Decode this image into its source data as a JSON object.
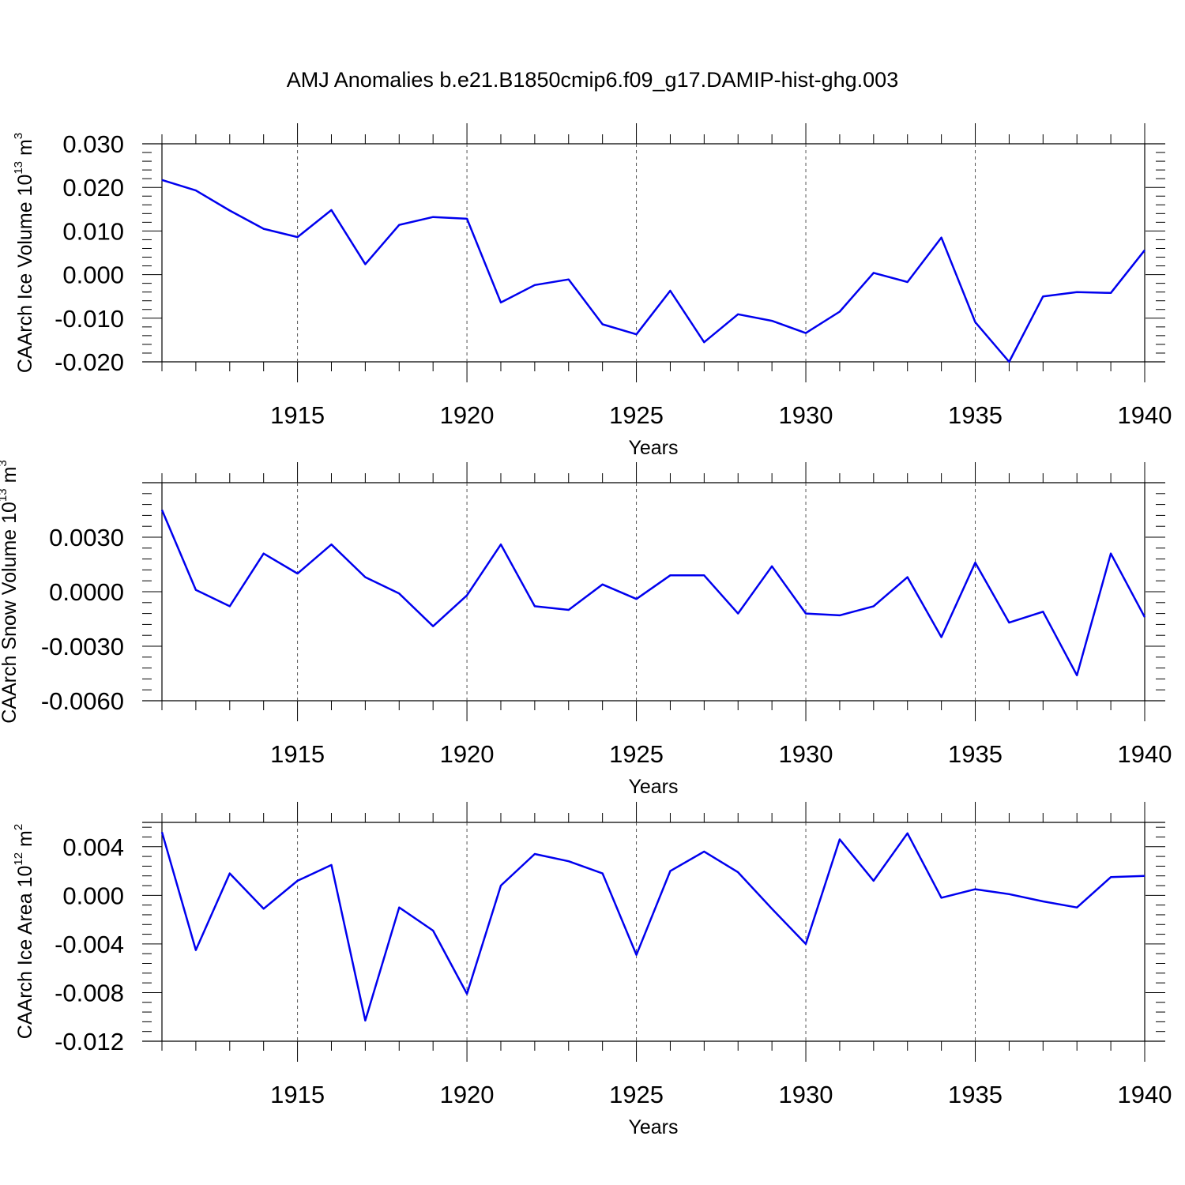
{
  "title": "AMJ Anomalies b.e21.B1850cmip6.f09_g17.DAMIP-hist-ghg.003",
  "chart_data": [
    {
      "type": "line",
      "title": "",
      "xlabel": "Years",
      "ylabel": "CAArch Ice Volume",
      "ylabel_unit_base": "10",
      "ylabel_unit_exp": "13",
      "ylabel_unit_symbol": "m",
      "ylabel_unit_symbol_exp": "3",
      "xlim": [
        1911,
        1940
      ],
      "ylim": [
        -0.02,
        0.03
      ],
      "yticks": [
        -0.02,
        -0.01,
        0.0,
        0.01,
        0.02,
        0.03
      ],
      "ytick_labels": [
        "-0.020",
        "-0.010",
        "0.000",
        "0.010",
        "0.020",
        "0.030"
      ],
      "xticks": [
        1915,
        1920,
        1925,
        1930,
        1935,
        1940
      ],
      "xtick_labels": [
        "1915",
        "1920",
        "1925",
        "1930",
        "1935",
        "1940"
      ],
      "grid": "vertical dashed at major x ticks",
      "line_color": "#0000ee",
      "x": [
        1911,
        1912,
        1913,
        1914,
        1915,
        1916,
        1917,
        1918,
        1919,
        1920,
        1921,
        1922,
        1923,
        1924,
        1925,
        1926,
        1927,
        1928,
        1929,
        1930,
        1931,
        1932,
        1933,
        1934,
        1935,
        1936,
        1937,
        1938,
        1939,
        1940
      ],
      "values": [
        0.0217,
        0.0193,
        0.0147,
        0.0105,
        0.0086,
        0.0148,
        0.0024,
        0.0114,
        0.0132,
        0.0128,
        -0.0064,
        -0.0024,
        -0.0011,
        -0.0114,
        -0.0137,
        -0.0037,
        -0.0155,
        -0.0091,
        -0.0106,
        -0.0134,
        -0.0085,
        0.0004,
        -0.0017,
        0.0085,
        -0.0109,
        -0.02,
        -0.005,
        -0.004,
        -0.0042,
        0.0056
      ]
    },
    {
      "type": "line",
      "title": "",
      "xlabel": "Years",
      "ylabel": "CAArch Snow Volume",
      "ylabel_unit_base": "10",
      "ylabel_unit_exp": "13",
      "ylabel_unit_symbol": "m",
      "ylabel_unit_symbol_exp": "3",
      "xlim": [
        1911,
        1940
      ],
      "ylim": [
        -0.006,
        0.006
      ],
      "yticks": [
        -0.006,
        -0.003,
        0.0,
        0.003
      ],
      "ytick_labels": [
        "-0.0060",
        "-0.0030",
        "0.0000",
        "0.0030"
      ],
      "xticks": [
        1915,
        1920,
        1925,
        1930,
        1935,
        1940
      ],
      "xtick_labels": [
        "1915",
        "1920",
        "1925",
        "1930",
        "1935",
        "1940"
      ],
      "grid": "vertical dashed at major x ticks",
      "line_color": "#0000ee",
      "x": [
        1911,
        1912,
        1913,
        1914,
        1915,
        1916,
        1917,
        1918,
        1919,
        1920,
        1921,
        1922,
        1923,
        1924,
        1925,
        1926,
        1927,
        1928,
        1929,
        1930,
        1931,
        1932,
        1933,
        1934,
        1935,
        1936,
        1937,
        1938,
        1939,
        1940
      ],
      "values": [
        0.0045,
        0.0001,
        -0.0008,
        0.0021,
        0.001,
        0.0026,
        0.0008,
        -0.0001,
        -0.0019,
        -0.0002,
        0.0026,
        -0.0008,
        -0.001,
        0.0004,
        -0.0004,
        0.0009,
        0.0009,
        -0.0012,
        0.0014,
        -0.0012,
        -0.0013,
        -0.0008,
        0.0008,
        -0.0025,
        0.0016,
        -0.0017,
        -0.0011,
        -0.0046,
        0.0021,
        -0.0014
      ]
    },
    {
      "type": "line",
      "title": "",
      "xlabel": "Years",
      "ylabel": "CAArch Ice Area",
      "ylabel_unit_base": "10",
      "ylabel_unit_exp": "12",
      "ylabel_unit_symbol": "m",
      "ylabel_unit_symbol_exp": "2",
      "xlim": [
        1911,
        1940
      ],
      "ylim": [
        -0.012,
        0.006
      ],
      "yticks": [
        -0.012,
        -0.008,
        -0.004,
        0.0,
        0.004
      ],
      "ytick_labels": [
        "-0.012",
        "-0.008",
        "-0.004",
        "0.000",
        "0.004"
      ],
      "xticks": [
        1915,
        1920,
        1925,
        1930,
        1935,
        1940
      ],
      "xtick_labels": [
        "1915",
        "1920",
        "1925",
        "1930",
        "1935",
        "1940"
      ],
      "grid": "vertical dashed at major x ticks",
      "line_color": "#0000ee",
      "x": [
        1911,
        1912,
        1913,
        1914,
        1915,
        1916,
        1917,
        1918,
        1919,
        1920,
        1921,
        1922,
        1923,
        1924,
        1925,
        1926,
        1927,
        1928,
        1929,
        1930,
        1931,
        1932,
        1933,
        1934,
        1935,
        1936,
        1937,
        1938,
        1939,
        1940
      ],
      "values": [
        0.0052,
        -0.0045,
        0.0018,
        -0.0011,
        0.0012,
        0.0025,
        -0.0103,
        -0.001,
        -0.0029,
        -0.0081,
        0.0008,
        0.0034,
        0.0028,
        0.0018,
        -0.0049,
        0.002,
        0.0036,
        0.0019,
        -0.0011,
        -0.004,
        0.0046,
        0.0012,
        0.0051,
        -0.0002,
        0.0005,
        0.0001,
        -0.0005,
        -0.001,
        0.0015,
        0.0016
      ]
    }
  ]
}
